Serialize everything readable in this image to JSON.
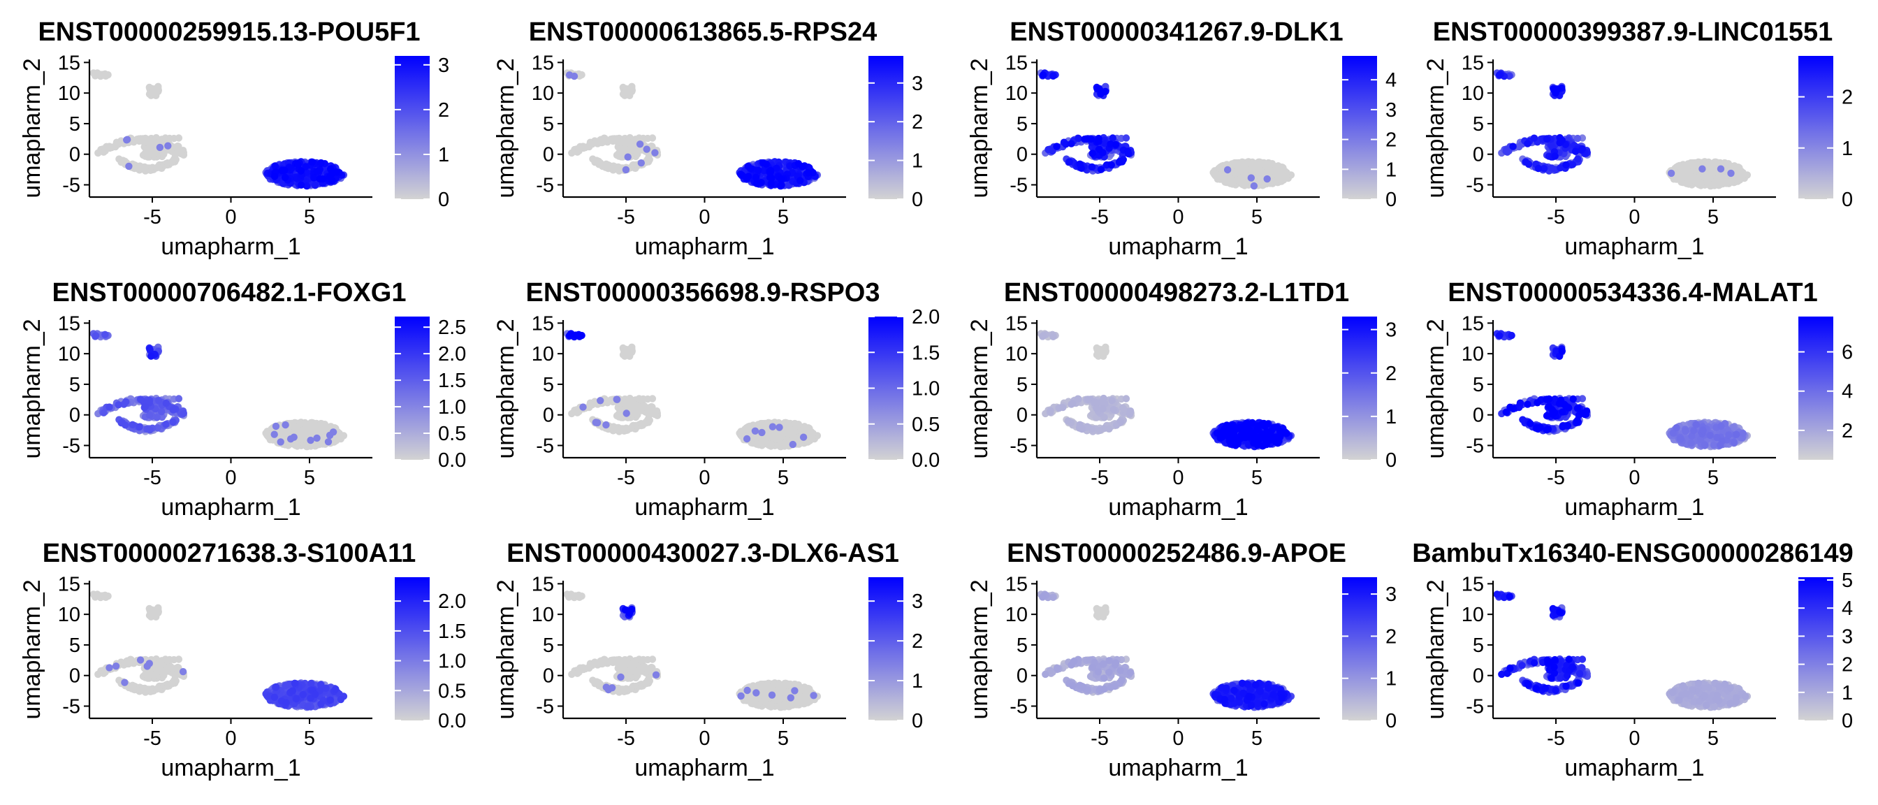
{
  "chart_data": [
    {
      "type": "scatter",
      "title": "ENST00000259915.13-POU5F1",
      "xlabel": "umapharm_1",
      "ylabel": "umapharm_2",
      "xlim": [
        -9,
        9
      ],
      "ylim": [
        -7,
        15.5
      ],
      "x_ticks": [
        "-5",
        "0",
        "5"
      ],
      "y_ticks": [
        "-5",
        "0",
        "5",
        "10",
        "15"
      ],
      "color_ticks": [
        "0",
        "1",
        "2",
        "3"
      ],
      "color_range": [
        0,
        3.2
      ],
      "color_low": "#d3d3d3",
      "color_high": "#0000ff",
      "expression": {
        "clusterA": 0,
        "clusterB": 0,
        "cluster_right": 2.4
      }
    },
    {
      "type": "scatter",
      "title": "ENST00000613865.5-RPS24",
      "xlabel": "umapharm_1",
      "ylabel": "umapharm_2",
      "xlim": [
        -9,
        9
      ],
      "ylim": [
        -7,
        15.5
      ],
      "x_ticks": [
        "-5",
        "0",
        "5"
      ],
      "y_ticks": [
        "-5",
        "0",
        "5",
        "10",
        "15"
      ],
      "color_ticks": [
        "0",
        "1",
        "2",
        "3"
      ],
      "color_range": [
        0,
        3.7
      ],
      "color_low": "#d3d3d3",
      "color_high": "#0000ff",
      "expression": {
        "clusterA": 0,
        "clusterB": 0,
        "cluster_right": 2.8
      }
    },
    {
      "type": "scatter",
      "title": "ENST00000341267.9-DLK1",
      "xlabel": "umapharm_1",
      "ylabel": "umapharm_2",
      "xlim": [
        -9,
        9
      ],
      "ylim": [
        -7,
        15.5
      ],
      "x_ticks": [
        "-5",
        "0",
        "5"
      ],
      "y_ticks": [
        "-5",
        "0",
        "5",
        "10",
        "15"
      ],
      "color_ticks": [
        "0",
        "1",
        "2",
        "3",
        "4"
      ],
      "color_range": [
        0,
        4.8
      ],
      "color_low": "#d3d3d3",
      "color_high": "#0000ff",
      "expression": {
        "clusterA": 3.6,
        "clusterB": 4.2,
        "cluster_right": 0
      }
    },
    {
      "type": "scatter",
      "title": "ENST00000399387.9-LINC01551",
      "xlabel": "umapharm_1",
      "ylabel": "umapharm_2",
      "xlim": [
        -9,
        9
      ],
      "ylim": [
        -7,
        15.5
      ],
      "x_ticks": [
        "-5",
        "0",
        "5"
      ],
      "y_ticks": [
        "-5",
        "0",
        "5",
        "10",
        "15"
      ],
      "color_ticks": [
        "0",
        "1",
        "2"
      ],
      "color_range": [
        0,
        2.8
      ],
      "color_low": "#d3d3d3",
      "color_high": "#0000ff",
      "expression": {
        "clusterA": 2.0,
        "clusterB": 2.5,
        "cluster_right": 0
      }
    },
    {
      "type": "scatter",
      "title": "ENST00000706482.1-FOXG1",
      "xlabel": "umapharm_1",
      "ylabel": "umapharm_2",
      "xlim": [
        -9,
        9
      ],
      "ylim": [
        -7,
        15.5
      ],
      "x_ticks": [
        "-5",
        "0",
        "5"
      ],
      "y_ticks": [
        "-5",
        "0",
        "5",
        "10",
        "15"
      ],
      "color_ticks": [
        "0.0",
        "0.5",
        "1.0",
        "1.5",
        "2.0",
        "2.5"
      ],
      "color_range": [
        0,
        2.7
      ],
      "color_low": "#d3d3d3",
      "color_high": "#0000ff",
      "expression": {
        "clusterA": 1.3,
        "clusterB": 1.8,
        "cluster_right": 0
      }
    },
    {
      "type": "scatter",
      "title": "ENST00000356698.9-RSPO3",
      "xlabel": "umapharm_1",
      "ylabel": "umapharm_2",
      "xlim": [
        -9,
        9
      ],
      "ylim": [
        -7,
        15.5
      ],
      "x_ticks": [
        "-5",
        "0",
        "5"
      ],
      "y_ticks": [
        "-5",
        "0",
        "5",
        "10",
        "15"
      ],
      "color_ticks": [
        "0.0",
        "0.5",
        "1.0",
        "1.5",
        "2.0"
      ],
      "color_range": [
        0,
        2.0
      ],
      "color_low": "#d3d3d3",
      "color_high": "#0000ff",
      "expression": {
        "clusterA": 0,
        "clusterB": 0,
        "cluster_right": 0,
        "cluster_top": 1.7
      }
    },
    {
      "type": "scatter",
      "title": "ENST00000498273.2-L1TD1",
      "xlabel": "umapharm_1",
      "ylabel": "umapharm_2",
      "xlim": [
        -9,
        9
      ],
      "ylim": [
        -7,
        15.5
      ],
      "x_ticks": [
        "-5",
        "0",
        "5"
      ],
      "y_ticks": [
        "-5",
        "0",
        "5",
        "10",
        "15"
      ],
      "color_ticks": [
        "0",
        "1",
        "2",
        "3"
      ],
      "color_range": [
        0,
        3.3
      ],
      "color_low": "#d3d3d3",
      "color_high": "#0000ff",
      "expression": {
        "clusterA": 0.4,
        "clusterB": 0,
        "cluster_right": 2.7
      }
    },
    {
      "type": "scatter",
      "title": "ENST00000534336.4-MALAT1",
      "xlabel": "umapharm_1",
      "ylabel": "umapharm_2",
      "xlim": [
        -9,
        9
      ],
      "ylim": [
        -7,
        15.5
      ],
      "x_ticks": [
        "-5",
        "0",
        "5"
      ],
      "y_ticks": [
        "-5",
        "0",
        "5",
        "10",
        "15"
      ],
      "color_ticks": [
        "2",
        "4",
        "6"
      ],
      "color_range": [
        0.5,
        7.8
      ],
      "color_low": "#d3d3d3",
      "color_high": "#0000ff",
      "expression": {
        "clusterA": 6.0,
        "clusterB": 6.0,
        "cluster_right": 3.0
      }
    },
    {
      "type": "scatter",
      "title": "ENST00000271638.3-S100A11",
      "xlabel": "umapharm_1",
      "ylabel": "umapharm_2",
      "xlim": [
        -9,
        9
      ],
      "ylim": [
        -7,
        15.5
      ],
      "x_ticks": [
        "-5",
        "0",
        "5"
      ],
      "y_ticks": [
        "-5",
        "0",
        "5",
        "10",
        "15"
      ],
      "color_ticks": [
        "0.0",
        "0.5",
        "1.0",
        "1.5",
        "2.0"
      ],
      "color_range": [
        0,
        2.4
      ],
      "color_low": "#d3d3d3",
      "color_high": "#0000ff",
      "expression": {
        "clusterA": 0,
        "clusterB": 0,
        "cluster_right": 1.3
      }
    },
    {
      "type": "scatter",
      "title": "ENST00000430027.3-DLX6-AS1",
      "xlabel": "umapharm_1",
      "ylabel": "umapharm_2",
      "xlim": [
        -9,
        9
      ],
      "ylim": [
        -7,
        15.5
      ],
      "x_ticks": [
        "-5",
        "0",
        "5"
      ],
      "y_ticks": [
        "-5",
        "0",
        "5",
        "10",
        "15"
      ],
      "color_ticks": [
        "0",
        "1",
        "2",
        "3"
      ],
      "color_range": [
        0,
        3.6
      ],
      "color_low": "#d3d3d3",
      "color_high": "#0000ff",
      "expression": {
        "clusterA": 0,
        "clusterB": 2.8,
        "cluster_right": 0
      }
    },
    {
      "type": "scatter",
      "title": "ENST00000252486.9-APOE",
      "xlabel": "umapharm_1",
      "ylabel": "umapharm_2",
      "xlim": [
        -9,
        9
      ],
      "ylim": [
        -7,
        15.5
      ],
      "x_ticks": [
        "-5",
        "0",
        "5"
      ],
      "y_ticks": [
        "-5",
        "0",
        "5",
        "10",
        "15"
      ],
      "color_ticks": [
        "0",
        "1",
        "2",
        "3"
      ],
      "color_range": [
        0,
        3.4
      ],
      "color_low": "#d3d3d3",
      "color_high": "#0000ff",
      "expression": {
        "clusterA": 0.6,
        "clusterB": 0,
        "cluster_right": 2.4
      }
    },
    {
      "type": "scatter",
      "title": "BambuTx16340-ENSG00000286149",
      "xlabel": "umapharm_1",
      "ylabel": "umapharm_2",
      "xlim": [
        -9,
        9
      ],
      "ylim": [
        -7,
        15.5
      ],
      "x_ticks": [
        "-5",
        "0",
        "5"
      ],
      "y_ticks": [
        "-5",
        "0",
        "5",
        "10",
        "15"
      ],
      "color_ticks": [
        "0",
        "1",
        "2",
        "3",
        "4",
        "5"
      ],
      "color_range": [
        0,
        5.1
      ],
      "color_low": "#d3d3d3",
      "color_high": "#0000ff",
      "expression": {
        "clusterA": 3.8,
        "clusterB": 4.0,
        "cluster_right": 0.8
      }
    }
  ]
}
